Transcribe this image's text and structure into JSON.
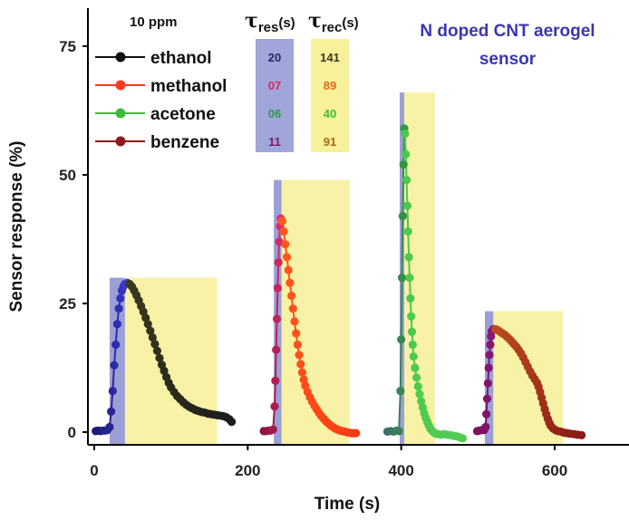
{
  "chart_data": {
    "type": "scatter",
    "title": [
      "N doped CNT aerogel",
      "sensor"
    ],
    "xlabel": "Time (s)",
    "ylabel": "Sensor response (%)",
    "xlim": [
      -10,
      700
    ],
    "ylim": [
      -3,
      77
    ],
    "xticks": [
      0,
      200,
      400,
      600
    ],
    "yticks": [
      0,
      25,
      50,
      75
    ],
    "concentration_label": "10 ppm",
    "tau_res_label": {
      "symbol": "τ",
      "sub": "res",
      "unit": "(s)"
    },
    "tau_rec_label": {
      "symbol": "τ",
      "sub": "rec",
      "unit": "(s)"
    },
    "colors": {
      "res_band": "#8f96d2",
      "rec_band": "#f7f19c",
      "title": "#3b36b0"
    },
    "series": [
      {
        "name": "ethanol",
        "tau_res": "20",
        "tau_rec": "141",
        "colors": {
          "start": "#1a1a6e",
          "peak": "#3a3acf",
          "decay": "#3a3a1e",
          "tail": "#1c1c1c",
          "legend": "#111111"
        },
        "res_text_color": "#222266",
        "rec_text_color": "#3a3a1a",
        "res_band": [
          20,
          40,
          30
        ],
        "rec_band": [
          40,
          160,
          30
        ],
        "points": [
          [
            2,
            0.2
          ],
          [
            5,
            0.3
          ],
          [
            8,
            0.2
          ],
          [
            11,
            0.3
          ],
          [
            14,
            0.3
          ],
          [
            17,
            0.4
          ],
          [
            20,
            1
          ],
          [
            22,
            4
          ],
          [
            24,
            8
          ],
          [
            26,
            13
          ],
          [
            28,
            17
          ],
          [
            30,
            21
          ],
          [
            32,
            24
          ],
          [
            34,
            26
          ],
          [
            36,
            27.5
          ],
          [
            38,
            28.3
          ],
          [
            40,
            28.8
          ],
          [
            43,
            29
          ],
          [
            46,
            28.8
          ],
          [
            49,
            28.3
          ],
          [
            52,
            27.5
          ],
          [
            55,
            26.6
          ],
          [
            58,
            25.6
          ],
          [
            61,
            24.5
          ],
          [
            64,
            23.4
          ],
          [
            67,
            22.2
          ],
          [
            70,
            21
          ],
          [
            73,
            19.7
          ],
          [
            76,
            18.4
          ],
          [
            79,
            17.1
          ],
          [
            82,
            15.8
          ],
          [
            85,
            14.4
          ],
          [
            88,
            13.1
          ],
          [
            91,
            11.9
          ],
          [
            94,
            10.7
          ],
          [
            97,
            9.6
          ],
          [
            100,
            8.7
          ],
          [
            104,
            7.8
          ],
          [
            108,
            7
          ],
          [
            112,
            6.4
          ],
          [
            116,
            5.8
          ],
          [
            120,
            5.3
          ],
          [
            124,
            4.9
          ],
          [
            128,
            4.6
          ],
          [
            132,
            4.3
          ],
          [
            136,
            4.1
          ],
          [
            140,
            3.9
          ],
          [
            144,
            3.8
          ],
          [
            148,
            3.6
          ],
          [
            152,
            3.5
          ],
          [
            156,
            3.4
          ],
          [
            160,
            3.3
          ],
          [
            164,
            3.2
          ],
          [
            168,
            3.1
          ],
          [
            172,
            2.9
          ],
          [
            176,
            2.5
          ],
          [
            179,
            2
          ]
        ]
      },
      {
        "name": "methanol",
        "tau_res": "07",
        "tau_rec": "89",
        "colors": {
          "start": "#8a1040",
          "peak": "#e0306a",
          "decay": "#ff5a1e",
          "tail": "#ff3a12",
          "legend": "#ff3b1f"
        },
        "res_text_color": "#e0245a",
        "rec_text_color": "#e06a18",
        "res_band": [
          234,
          244,
          49
        ],
        "rec_band": [
          244,
          333,
          49
        ],
        "points": [
          [
            221,
            0.2
          ],
          [
            224,
            0.2
          ],
          [
            227,
            0.3
          ],
          [
            230,
            0.3
          ],
          [
            233,
            0.5
          ],
          [
            235,
            5
          ],
          [
            236,
            10
          ],
          [
            237,
            16
          ],
          [
            238,
            22
          ],
          [
            239,
            28
          ],
          [
            240,
            33
          ],
          [
            241,
            37
          ],
          [
            242,
            40
          ],
          [
            243,
            41.5
          ],
          [
            245,
            41
          ],
          [
            247,
            39
          ],
          [
            249,
            36.5
          ],
          [
            251,
            34
          ],
          [
            253,
            31.5
          ],
          [
            255,
            29
          ],
          [
            257,
            26.5
          ],
          [
            259,
            24
          ],
          [
            261,
            21.5
          ],
          [
            263,
            19.2
          ],
          [
            265,
            17
          ],
          [
            267,
            15
          ],
          [
            269,
            13.2
          ],
          [
            271,
            11.6
          ],
          [
            273,
            10.2
          ],
          [
            275,
            9
          ],
          [
            278,
            7.8
          ],
          [
            281,
            6.8
          ],
          [
            284,
            5.9
          ],
          [
            287,
            5.1
          ],
          [
            290,
            4.4
          ],
          [
            293,
            3.7
          ],
          [
            296,
            3.1
          ],
          [
            299,
            2.6
          ],
          [
            302,
            2.1
          ],
          [
            305,
            1.7
          ],
          [
            308,
            1.3
          ],
          [
            311,
            1
          ],
          [
            314,
            0.7
          ],
          [
            317,
            0.5
          ],
          [
            320,
            0.3
          ],
          [
            323,
            0.2
          ],
          [
            326,
            0.1
          ],
          [
            329,
            0
          ],
          [
            332,
            -0.1
          ],
          [
            335,
            -0.2
          ],
          [
            338,
            -0.2
          ],
          [
            341,
            -0.2
          ]
        ]
      },
      {
        "name": "acetone",
        "tau_res": "06",
        "tau_rec": "40",
        "colors": {
          "start": "#3f6f6a",
          "peak": "#2f9a3e",
          "decay": "#4cc84c",
          "tail": "#50cc50",
          "legend": "#3dbb3d"
        },
        "res_text_color": "#2a9a4a",
        "rec_text_color": "#3cbf3c",
        "res_band": [
          398,
          404,
          66
        ],
        "rec_band": [
          404,
          444,
          66
        ],
        "points": [
          [
            382,
            0.1
          ],
          [
            386,
            0.2
          ],
          [
            390,
            0.1
          ],
          [
            394,
            0.3
          ],
          [
            397,
            0.2
          ],
          [
            399,
            8
          ],
          [
            400,
            18
          ],
          [
            401,
            30
          ],
          [
            402,
            42
          ],
          [
            403,
            52
          ],
          [
            404,
            59
          ],
          [
            405,
            58
          ],
          [
            406,
            54
          ],
          [
            407,
            49
          ],
          [
            408,
            44
          ],
          [
            409,
            39
          ],
          [
            410,
            34
          ],
          [
            411,
            30
          ],
          [
            412,
            26
          ],
          [
            413,
            22.5
          ],
          [
            414,
            19.5
          ],
          [
            415,
            17
          ],
          [
            416,
            14.7
          ],
          [
            418,
            12.5
          ],
          [
            420,
            10.6
          ],
          [
            422,
            8.9
          ],
          [
            424,
            7.4
          ],
          [
            426,
            6
          ],
          [
            428,
            4.8
          ],
          [
            430,
            3.7
          ],
          [
            432,
            2.8
          ],
          [
            434,
            2
          ],
          [
            436,
            1.3
          ],
          [
            438,
            0.7
          ],
          [
            440,
            0.3
          ],
          [
            442,
            0
          ],
          [
            445,
            -0.3
          ],
          [
            448,
            -0.4
          ],
          [
            452,
            -0.5
          ],
          [
            456,
            -0.4
          ],
          [
            460,
            -0.5
          ],
          [
            464,
            -0.6
          ],
          [
            468,
            -0.7
          ],
          [
            472,
            -0.8
          ],
          [
            476,
            -1
          ],
          [
            480,
            -1.2
          ]
        ]
      },
      {
        "name": "benzene",
        "tau_res": "11",
        "tau_rec": "91",
        "colors": {
          "start": "#7a1060",
          "peak": "#8a1a78",
          "decay": "#c0501c",
          "tail": "#8a1a16",
          "legend": "#8b1a1a"
        },
        "res_text_color": "#7a1a6a",
        "rec_text_color": "#a86a18",
        "res_band": [
          509,
          520,
          23.5
        ],
        "rec_band": [
          520,
          611,
          23.5
        ],
        "points": [
          [
            499,
            0.2
          ],
          [
            502,
            0.3
          ],
          [
            505,
            0.4
          ],
          [
            508,
            0.4
          ],
          [
            510,
            1
          ],
          [
            511,
            3.5
          ],
          [
            512,
            6.5
          ],
          [
            513,
            9.5
          ],
          [
            514,
            12.5
          ],
          [
            515,
            15
          ],
          [
            516,
            17
          ],
          [
            517,
            18.6
          ],
          [
            518,
            19.6
          ],
          [
            520,
            20
          ],
          [
            523,
            20
          ],
          [
            526,
            19.8
          ],
          [
            529,
            19.5
          ],
          [
            532,
            19.2
          ],
          [
            535,
            18.9
          ],
          [
            538,
            18.5
          ],
          [
            541,
            18.1
          ],
          [
            544,
            17.6
          ],
          [
            547,
            17.1
          ],
          [
            550,
            16.6
          ],
          [
            553,
            16
          ],
          [
            556,
            15.3
          ],
          [
            559,
            14.5
          ],
          [
            562,
            13.6
          ],
          [
            565,
            12.7
          ],
          [
            568,
            11.8
          ],
          [
            571,
            11
          ],
          [
            574,
            10.3
          ],
          [
            577,
            9.6
          ],
          [
            579,
            8.8
          ],
          [
            581,
            7.8
          ],
          [
            583,
            6.7
          ],
          [
            585,
            5.6
          ],
          [
            587,
            4.5
          ],
          [
            589,
            3.5
          ],
          [
            591,
            2.6
          ],
          [
            593,
            1.8
          ],
          [
            595,
            1.2
          ],
          [
            598,
            0.7
          ],
          [
            601,
            0.4
          ],
          [
            604,
            0.2
          ],
          [
            608,
            0.1
          ],
          [
            612,
            -0.1
          ],
          [
            616,
            -0.2
          ],
          [
            620,
            -0.3
          ],
          [
            625,
            -0.4
          ],
          [
            630,
            -0.5
          ],
          [
            635,
            -0.6
          ]
        ]
      }
    ]
  }
}
